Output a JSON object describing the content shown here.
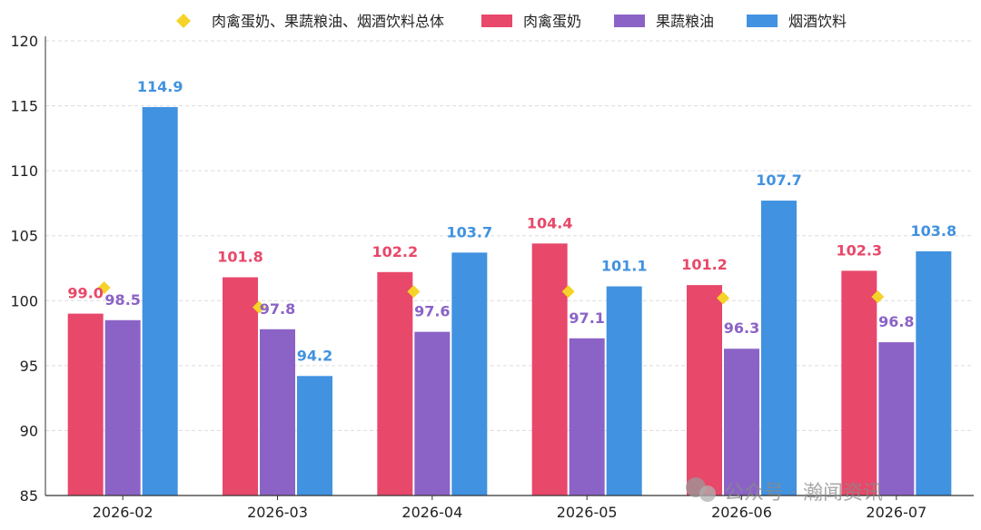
{
  "chart_data": {
    "type": "bar",
    "categories": [
      "2026-02",
      "2026-03",
      "2026-04",
      "2026-05",
      "2026-06",
      "2026-07"
    ],
    "series": [
      {
        "name": "肉禽蛋奶",
        "values": [
          99.0,
          101.8,
          102.2,
          104.4,
          101.2,
          102.3
        ],
        "color": "#E8486A",
        "labels": [
          "99.0",
          "101.8",
          "102.2",
          "104.4",
          "101.2",
          "102.3"
        ]
      },
      {
        "name": "果蔬粮油",
        "values": [
          98.5,
          97.8,
          97.6,
          97.1,
          96.3,
          96.8
        ],
        "color": "#8B63C6",
        "labels": [
          "98.5",
          "97.8",
          "97.6",
          "97.1",
          "96.3",
          "96.8"
        ]
      },
      {
        "name": "烟酒饮料",
        "values": [
          114.9,
          94.2,
          103.7,
          101.1,
          107.7,
          103.8
        ],
        "color": "#4192E0",
        "labels": [
          "114.9",
          "94.2",
          "103.7",
          "101.1",
          "107.7",
          "103.8"
        ]
      }
    ],
    "overall": {
      "name": "肉禽蛋奶、果蔬粮油、烟酒饮料总体",
      "values": [
        101.0,
        99.5,
        100.7,
        100.7,
        100.2,
        100.3
      ],
      "marker": "diamond",
      "color": "#F5D328"
    },
    "ylim": [
      85,
      120
    ],
    "yticks": [
      85,
      90,
      95,
      100,
      105,
      110,
      115,
      120
    ],
    "title": "",
    "xlabel": "",
    "ylabel": "",
    "grid": true,
    "legend_position": "top"
  },
  "watermark": {
    "text": "公众号 · 瀚闻资讯"
  }
}
